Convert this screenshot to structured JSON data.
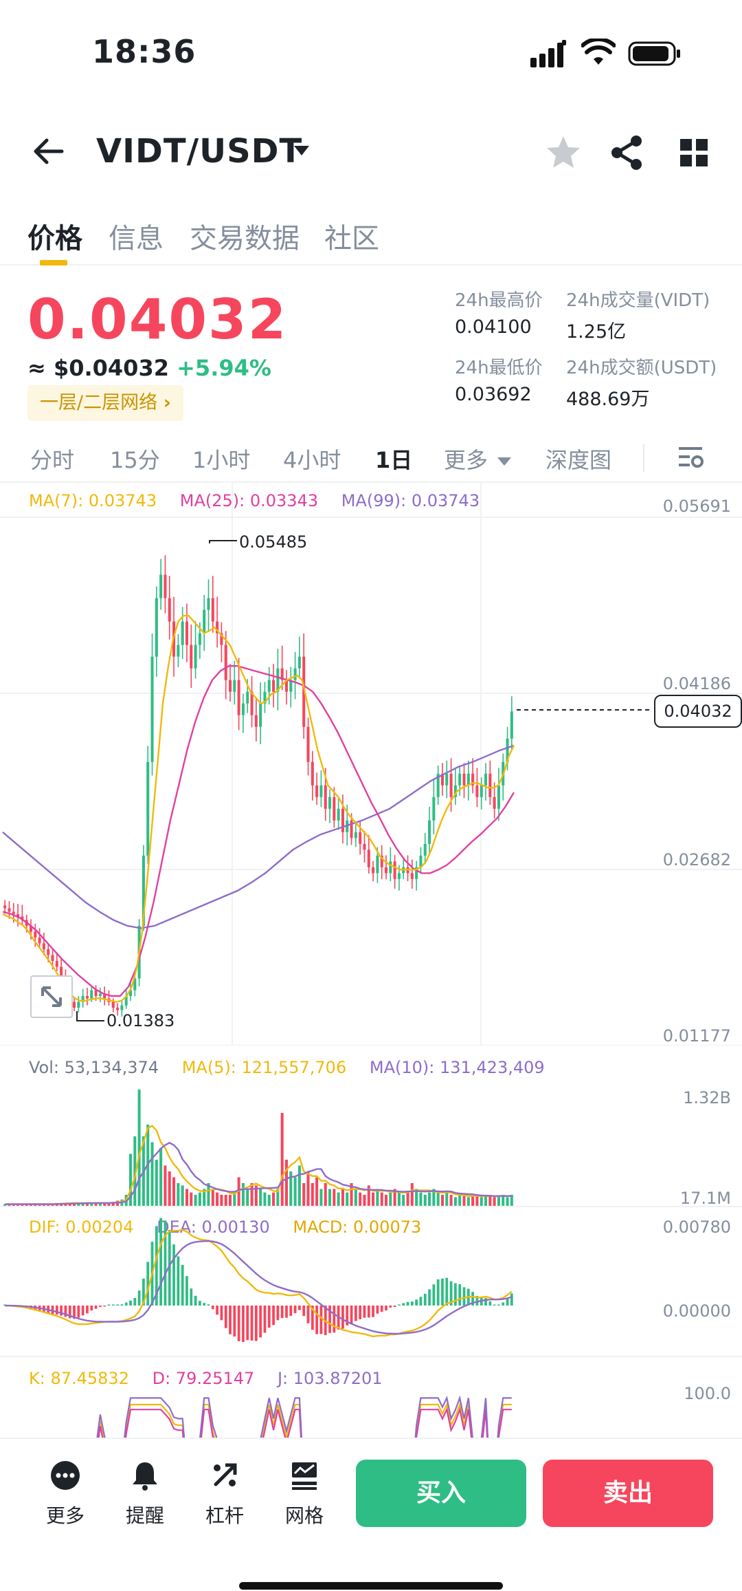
{
  "status_bar": {
    "time": "18:36"
  },
  "header": {
    "pair": "VIDT/USDT"
  },
  "tabs": [
    {
      "label": "价格",
      "active": true
    },
    {
      "label": "信息",
      "active": false
    },
    {
      "label": "交易数据",
      "active": false
    },
    {
      "label": "社区",
      "active": false
    }
  ],
  "price": {
    "last": "0.04032",
    "usd": "≈ $0.04032",
    "change": "+5.94%",
    "network_badge": "一层/二层网络"
  },
  "stats": {
    "high_label": "24h最高价",
    "high": "0.04100",
    "vol_base_label": "24h成交量(VIDT)",
    "vol_base": "1.25亿",
    "low_label": "24h最低价",
    "low": "0.03692",
    "vol_quote_label": "24h成交额(USDT)",
    "vol_quote": "488.69万"
  },
  "intervals": [
    {
      "label": "分时",
      "active": false
    },
    {
      "label": "15分",
      "active": false
    },
    {
      "label": "1小时",
      "active": false
    },
    {
      "label": "4小时",
      "active": false
    },
    {
      "label": "1日",
      "active": true
    },
    {
      "label": "更多",
      "active": false
    },
    {
      "label": "深度图",
      "active": false
    }
  ],
  "main_indicators": {
    "ma7": "MA(7): 0.03743",
    "ma25": "MA(25): 0.03343",
    "ma99": "MA(99): 0.03743"
  },
  "vol_indicators": {
    "vol": "Vol: 53,134,374",
    "ma5": "MA(5): 121,557,706",
    "ma10": "MA(10): 131,423,409"
  },
  "macd_indicators": {
    "dif": "DIF: 0.00204",
    "dea": "DEA: 0.00130",
    "macd": "MACD: 0.00073"
  },
  "kdj_indicators": {
    "k": "K: 87.45832",
    "d": "D: 79.25147",
    "j": "J: 103.87201"
  },
  "chart_data": {
    "type": "candlestick",
    "price_axis": [
      "0.05691",
      "0.04186",
      "0.02682",
      "0.01177"
    ],
    "ylim": [
      0.01177,
      0.05691
    ],
    "current_price_tag": "0.04032",
    "high_marker": "0.05485",
    "low_marker": "0.01383",
    "close_series": [
      0.0235,
      0.0232,
      0.023,
      0.0228,
      0.0225,
      0.022,
      0.0215,
      0.021,
      0.0205,
      0.02,
      0.0195,
      0.019,
      0.0185,
      0.0175,
      0.0165,
      0.0155,
      0.015,
      0.0155,
      0.016,
      0.0158,
      0.0165,
      0.016,
      0.0162,
      0.0158,
      0.0155,
      0.015,
      0.0148,
      0.0152,
      0.016,
      0.0165,
      0.0175,
      0.022,
      0.028,
      0.036,
      0.045,
      0.05,
      0.052,
      0.05,
      0.048,
      0.045,
      0.046,
      0.048,
      0.046,
      0.044,
      0.046,
      0.047,
      0.049,
      0.05,
      0.048,
      0.047,
      0.046,
      0.043,
      0.042,
      0.043,
      0.04,
      0.041,
      0.042,
      0.04,
      0.039,
      0.041,
      0.042,
      0.043,
      0.042,
      0.044,
      0.043,
      0.042,
      0.043,
      0.044,
      0.045,
      0.039,
      0.036,
      0.034,
      0.033,
      0.034,
      0.032,
      0.033,
      0.031,
      0.032,
      0.03,
      0.031,
      0.0295,
      0.03,
      0.029,
      0.0285,
      0.027,
      0.0265,
      0.028,
      0.027,
      0.0265,
      0.0275,
      0.026,
      0.0265,
      0.027,
      0.0265,
      0.026,
      0.027,
      0.028,
      0.029,
      0.031,
      0.033,
      0.035,
      0.034,
      0.035,
      0.033,
      0.034,
      0.035,
      0.034,
      0.035,
      0.034,
      0.033,
      0.034,
      0.035,
      0.033,
      0.032,
      0.034,
      0.036,
      0.038,
      0.04032
    ],
    "ma7": [
      0.023,
      0.0228,
      0.0226,
      0.0223,
      0.022,
      0.0215,
      0.0208,
      0.0202,
      0.0196,
      0.019,
      0.0183,
      0.0176,
      0.0168,
      0.0162,
      0.0158,
      0.0156,
      0.0156,
      0.0157,
      0.0158,
      0.0158,
      0.0157,
      0.0156,
      0.0155,
      0.0156,
      0.016,
      0.0168,
      0.0185,
      0.0215,
      0.026,
      0.031,
      0.036,
      0.041,
      0.044,
      0.0465,
      0.048,
      0.0485,
      0.0485,
      0.048,
      0.0475,
      0.047,
      0.0472,
      0.0475,
      0.047,
      0.0465,
      0.046,
      0.045,
      0.044,
      0.043,
      0.042,
      0.0415,
      0.041,
      0.0412,
      0.0418,
      0.042,
      0.0425,
      0.043,
      0.0432,
      0.0434,
      0.043,
      0.041,
      0.039,
      0.037,
      0.0355,
      0.034,
      0.0335,
      0.033,
      0.0322,
      0.0315,
      0.031,
      0.0305,
      0.03,
      0.0295,
      0.0288,
      0.028,
      0.0275,
      0.0272,
      0.027,
      0.0268,
      0.0268,
      0.0268,
      0.0268,
      0.027,
      0.0275,
      0.0285,
      0.0298,
      0.031,
      0.032,
      0.0328,
      0.0335,
      0.0338,
      0.034,
      0.0342,
      0.0342,
      0.034,
      0.0338,
      0.0338,
      0.034,
      0.035,
      0.0365,
      0.0374
    ],
    "ma25": [
      0.0232,
      0.023,
      0.0227,
      0.0222,
      0.0216,
      0.0208,
      0.02,
      0.0192,
      0.0185,
      0.0178,
      0.0172,
      0.0166,
      0.0162,
      0.016,
      0.016,
      0.0168,
      0.0185,
      0.021,
      0.024,
      0.0275,
      0.031,
      0.034,
      0.037,
      0.0395,
      0.0415,
      0.043,
      0.0438,
      0.0442,
      0.0442,
      0.044,
      0.0438,
      0.0436,
      0.0434,
      0.0432,
      0.043,
      0.0428,
      0.0425,
      0.042,
      0.041,
      0.0398,
      0.0385,
      0.037,
      0.0355,
      0.034,
      0.0325,
      0.0312,
      0.0298,
      0.0286,
      0.0276,
      0.0269,
      0.0265,
      0.0265,
      0.0268,
      0.0272,
      0.0278,
      0.0285,
      0.0292,
      0.0298,
      0.0305,
      0.0312,
      0.0322,
      0.0334
    ],
    "ma99": [
      0.03,
      0.029,
      0.028,
      0.027,
      0.026,
      0.025,
      0.024,
      0.0232,
      0.0225,
      0.022,
      0.0218,
      0.022,
      0.0225,
      0.023,
      0.0235,
      0.024,
      0.0245,
      0.025,
      0.0257,
      0.0265,
      0.0275,
      0.0285,
      0.0292,
      0.0298,
      0.0302,
      0.0306,
      0.031,
      0.0315,
      0.032,
      0.0328,
      0.0336,
      0.0344,
      0.035,
      0.0356,
      0.036,
      0.0365,
      0.037,
      0.0374
    ],
    "volume_axis": [
      "1.32B",
      "17.1M"
    ],
    "volume_series": [
      0.02,
      0.02,
      0.02,
      0.02,
      0.02,
      0.02,
      0.02,
      0.02,
      0.02,
      0.02,
      0.02,
      0.02,
      0.03,
      0.03,
      0.03,
      0.03,
      0.03,
      0.03,
      0.03,
      0.03,
      0.03,
      0.03,
      0.03,
      0.03,
      0.03,
      0.04,
      0.05,
      0.06,
      0.1,
      0.45,
      0.6,
      1.0,
      0.6,
      0.7,
      0.55,
      0.4,
      0.5,
      0.35,
      0.3,
      0.25,
      0.2,
      0.18,
      0.15,
      0.12,
      0.1,
      0.12,
      0.15,
      0.2,
      0.15,
      0.12,
      0.1,
      0.1,
      0.1,
      0.12,
      0.25,
      0.2,
      0.15,
      0.2,
      0.18,
      0.15,
      0.12,
      0.1,
      0.12,
      0.15,
      0.8,
      0.4,
      0.3,
      0.25,
      0.35,
      0.2,
      0.3,
      0.2,
      0.25,
      0.15,
      0.2,
      0.15,
      0.15,
      0.12,
      0.15,
      0.12,
      0.2,
      0.15,
      0.12,
      0.1,
      0.18,
      0.12,
      0.15,
      0.12,
      0.1,
      0.12,
      0.15,
      0.12,
      0.1,
      0.12,
      0.2,
      0.15,
      0.12,
      0.1,
      0.12,
      0.15,
      0.12,
      0.1,
      0.12,
      0.1,
      0.08,
      0.1,
      0.09,
      0.08,
      0.1,
      0.09,
      0.08,
      0.09,
      0.1,
      0.08,
      0.09,
      0.1,
      0.08,
      0.1
    ],
    "macd_axis": [
      "0.00780",
      "0.00000"
    ],
    "kdj_axis": [
      "100.0"
    ]
  },
  "bottom_bar": {
    "more": "更多",
    "alert": "提醒",
    "leverage": "杠杆",
    "grid": "网格",
    "buy": "买入",
    "sell": "卖出"
  },
  "colors": {
    "up": "#2ebd85",
    "down": "#f6465d",
    "accent": "#f0b90b",
    "ma7": "#f0b90b",
    "ma25": "#e040a0",
    "ma99": "#8e6cc9"
  }
}
